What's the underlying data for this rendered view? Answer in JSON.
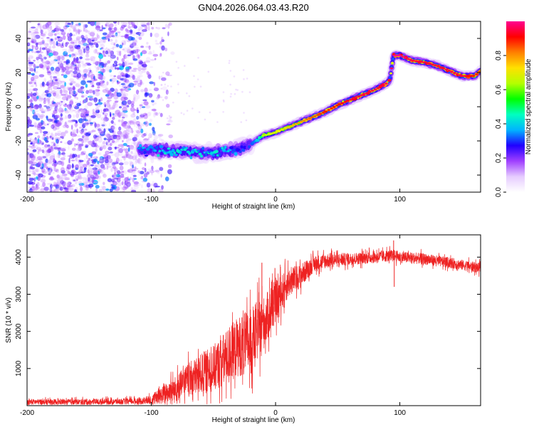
{
  "title": "GN04.2026.064.03.43.R20",
  "chart_data": [
    {
      "type": "heatmap",
      "title": "",
      "xlabel": "Height of straight line (km)",
      "ylabel": "Frequency (Hz)",
      "xlim": [
        -200,
        165
      ],
      "ylim": [
        -50,
        50
      ],
      "xticks": [
        -200,
        -100,
        0,
        100
      ],
      "xtick_labels": [
        "-200",
        "-100",
        "0",
        "100"
      ],
      "yticks": [
        -40,
        -20,
        0,
        20,
        40
      ],
      "ytick_labels": [
        "-40",
        "-20",
        "0",
        "20",
        "40"
      ],
      "colorbar": {
        "label": "Normalized spectral amplitude",
        "range": [
          0,
          1
        ],
        "ticks": [
          0.0,
          0.2,
          0.4,
          0.6,
          0.8
        ],
        "tick_labels": [
          "0.0",
          "0.2",
          "0.4",
          "0.6",
          "0.8"
        ],
        "colormap": [
          "#ffffff",
          "#e6ccff",
          "#a040ff",
          "#2000ff",
          "#00b4ff",
          "#00ffc0",
          "#00ff00",
          "#b4ff00",
          "#ffe000",
          "#ff8000",
          "#ff0000",
          "#ff0090"
        ]
      },
      "noise_region_x": [
        -200,
        -100
      ],
      "ridge": {
        "x": [
          -110,
          -100,
          -90,
          -80,
          -70,
          -60,
          -50,
          -40,
          -30,
          -20,
          -10,
          0,
          10,
          20,
          30,
          40,
          50,
          60,
          70,
          80,
          90,
          92,
          95,
          100,
          110,
          120,
          130,
          140,
          150,
          160,
          165
        ],
        "y": [
          -25,
          -25,
          -25.5,
          -26,
          -26,
          -27,
          -27,
          -26,
          -25,
          -22,
          -17,
          -15,
          -12,
          -9,
          -6,
          -3,
          1,
          4,
          7,
          10,
          14,
          16,
          30,
          30,
          27,
          26,
          24,
          21,
          18,
          18,
          21
        ],
        "peak_amplitude": [
          0.35,
          0.4,
          0.45,
          0.45,
          0.45,
          0.45,
          0.45,
          0.4,
          0.35,
          0.3,
          0.6,
          0.65,
          0.7,
          0.75,
          0.8,
          0.85,
          0.85,
          0.9,
          0.9,
          0.9,
          0.9,
          0.9,
          0.95,
          0.95,
          0.9,
          0.9,
          0.9,
          0.9,
          0.9,
          0.85,
          0.8
        ]
      }
    },
    {
      "type": "line",
      "title": "",
      "xlabel": "Height of straight line (km)",
      "ylabel": "SNR (10 * v/v)",
      "xlim": [
        -200,
        165
      ],
      "ylim": [
        0,
        4600
      ],
      "xticks": [
        -200,
        -100,
        0,
        100
      ],
      "xtick_labels": [
        "-200",
        "-100",
        "0",
        "100"
      ],
      "yticks": [
        1000,
        2000,
        3000,
        4000
      ],
      "ytick_labels": [
        "1000",
        "2000",
        "3000",
        "4000"
      ],
      "series": [
        {
          "name": "SNR",
          "color": "#ee2222",
          "trend_x": [
            -200,
            -150,
            -110,
            -100,
            -90,
            -80,
            -70,
            -60,
            -50,
            -40,
            -30,
            -20,
            -15,
            -10,
            -5,
            0,
            10,
            20,
            30,
            40,
            60,
            80,
            95,
            100,
            120,
            140,
            165
          ],
          "trend_y": [
            100,
            100,
            120,
            150,
            300,
            450,
            700,
            850,
            1000,
            1300,
            1600,
            1700,
            2000,
            2200,
            2500,
            2800,
            3300,
            3500,
            3800,
            3900,
            3950,
            4000,
            4050,
            4000,
            3950,
            3850,
            3700
          ],
          "noise_amplitude_x": [
            -200,
            -110,
            -100,
            -80,
            -60,
            -40,
            -20,
            -5,
            10,
            30,
            60,
            165
          ],
          "noise_amplitude_y": [
            80,
            90,
            150,
            400,
            600,
            800,
            1000,
            700,
            450,
            250,
            180,
            150
          ],
          "spikes": [
            {
              "x": -11,
              "y": 3850
            },
            {
              "x": 95,
              "y": 4450
            },
            {
              "x": 95.5,
              "y": 3200
            }
          ]
        }
      ]
    }
  ]
}
